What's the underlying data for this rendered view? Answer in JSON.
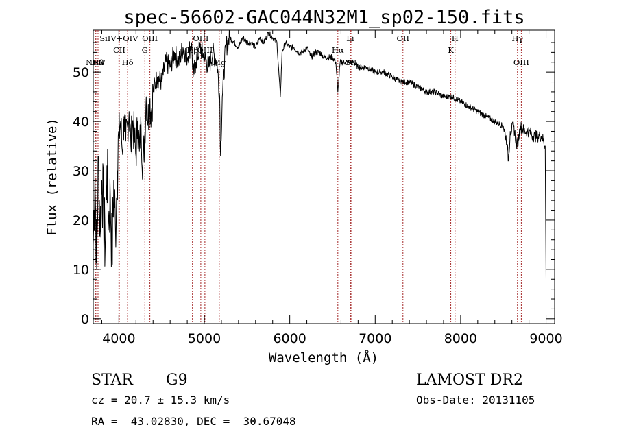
{
  "title": "spec-56602-GAC044N32M1_sp02-150.fits",
  "info": {
    "class": "STAR",
    "subclass": "G9",
    "cz": "cz = 20.7 ± 15.3 km/s",
    "radec": "RA =  43.02830, DEC =  30.67048",
    "survey": "LAMOST DR2",
    "obsdate": "Obs-Date: 20131105"
  },
  "colors": {
    "spectrum": "#000000",
    "line_marker": "#a52a2a"
  },
  "chart_data": {
    "type": "line",
    "title": "spec-56602-GAC044N32M1_sp02-150.fits",
    "xlabel": "Wavelength (Å)",
    "ylabel": "Flux (relative)",
    "xlim": [
      3700,
      9100
    ],
    "ylim": [
      -1,
      58.5
    ],
    "x_ticks": [
      4000,
      5000,
      6000,
      7000,
      8000,
      9000
    ],
    "y_ticks": [
      0,
      10,
      20,
      30,
      40,
      50
    ],
    "grid": false,
    "series": [
      {
        "points": [
          [
            3700,
            15
          ],
          [
            3720,
            30
          ],
          [
            3740,
            10
          ],
          [
            3760,
            33
          ],
          [
            3780,
            18
          ],
          [
            3800,
            28
          ],
          [
            3820,
            22
          ],
          [
            3840,
            14
          ],
          [
            3860,
            31
          ],
          [
            3880,
            20
          ],
          [
            3900,
            25
          ],
          [
            3920,
            12
          ],
          [
            3940,
            28
          ],
          [
            3960,
            18
          ],
          [
            3980,
            30
          ],
          [
            4000,
            37
          ],
          [
            4020,
            40
          ],
          [
            4040,
            34
          ],
          [
            4060,
            41
          ],
          [
            4080,
            36
          ],
          [
            4100,
            39
          ],
          [
            4120,
            42
          ],
          [
            4140,
            35
          ],
          [
            4160,
            40
          ],
          [
            4180,
            37
          ],
          [
            4200,
            33
          ],
          [
            4220,
            40
          ],
          [
            4240,
            34
          ],
          [
            4260,
            39
          ],
          [
            4280,
            31
          ],
          [
            4300,
            36
          ],
          [
            4320,
            45
          ],
          [
            4340,
            40
          ],
          [
            4360,
            44
          ],
          [
            4380,
            42
          ],
          [
            4400,
            46
          ],
          [
            4450,
            49
          ],
          [
            4500,
            48
          ],
          [
            4550,
            52
          ],
          [
            4600,
            51
          ],
          [
            4650,
            54
          ],
          [
            4700,
            52
          ],
          [
            4750,
            55
          ],
          [
            4800,
            53
          ],
          [
            4850,
            56
          ],
          [
            4870,
            49
          ],
          [
            4900,
            52
          ],
          [
            4950,
            55
          ],
          [
            5000,
            53
          ],
          [
            5050,
            51
          ],
          [
            5100,
            54
          ],
          [
            5150,
            52
          ],
          [
            5180,
            45
          ],
          [
            5190,
            33
          ],
          [
            5210,
            45
          ],
          [
            5250,
            55
          ],
          [
            5300,
            57
          ],
          [
            5350,
            56
          ],
          [
            5400,
            55
          ],
          [
            5450,
            57
          ],
          [
            5500,
            56
          ],
          [
            5550,
            56
          ],
          [
            5600,
            55
          ],
          [
            5650,
            57
          ],
          [
            5700,
            56
          ],
          [
            5750,
            58
          ],
          [
            5800,
            57
          ],
          [
            5850,
            56
          ],
          [
            5890,
            45
          ],
          [
            5910,
            54
          ],
          [
            5950,
            56
          ],
          [
            6000,
            55
          ],
          [
            6050,
            55
          ],
          [
            6100,
            54
          ],
          [
            6150,
            54
          ],
          [
            6200,
            55
          ],
          [
            6250,
            53
          ],
          [
            6300,
            54
          ],
          [
            6350,
            54
          ],
          [
            6400,
            53
          ],
          [
            6450,
            53
          ],
          [
            6500,
            53
          ],
          [
            6540,
            52
          ],
          [
            6563,
            46
          ],
          [
            6590,
            52
          ],
          [
            6650,
            52
          ],
          [
            6700,
            52
          ],
          [
            6750,
            52
          ],
          [
            6800,
            51
          ],
          [
            6900,
            51
          ],
          [
            7000,
            50
          ],
          [
            7100,
            50
          ],
          [
            7200,
            49
          ],
          [
            7300,
            48
          ],
          [
            7400,
            48
          ],
          [
            7500,
            47
          ],
          [
            7600,
            46
          ],
          [
            7700,
            46
          ],
          [
            7800,
            45
          ],
          [
            7900,
            45
          ],
          [
            8000,
            44
          ],
          [
            8100,
            43
          ],
          [
            8200,
            42
          ],
          [
            8300,
            41
          ],
          [
            8400,
            40
          ],
          [
            8500,
            39
          ],
          [
            8540,
            36
          ],
          [
            8560,
            32
          ],
          [
            8580,
            38
          ],
          [
            8620,
            39
          ],
          [
            8660,
            35
          ],
          [
            8700,
            39
          ],
          [
            8750,
            38
          ],
          [
            8800,
            38
          ],
          [
            8850,
            37
          ],
          [
            8900,
            37
          ],
          [
            8950,
            37
          ],
          [
            8990,
            35
          ],
          [
            9000,
            8
          ]
        ]
      }
    ],
    "spectral_lines": [
      {
        "label": "Ne V",
        "wavelength": 3727,
        "row": 2
      },
      {
        "label": "O II",
        "wavelength": 3741,
        "row": 2
      },
      {
        "label": "Hθ",
        "wavelength": 3756,
        "row": 2
      },
      {
        "label": "SiIV+OIV",
        "wavelength": 4000,
        "row": 0
      },
      {
        "label": "CII",
        "wavelength": 4005,
        "row": 1
      },
      {
        "label": "Hδ",
        "wavelength": 4102,
        "row": 2
      },
      {
        "label": "G",
        "wavelength": 4304,
        "row": 1
      },
      {
        "label": "OIII",
        "wavelength": 4363,
        "row": 0
      },
      {
        "label": "Hβ",
        "wavelength": 4861,
        "row": 1
      },
      {
        "label": "OIII",
        "wavelength": 4959,
        "row": 0
      },
      {
        "label": "OIII",
        "wavelength": 5007,
        "row": 1
      },
      {
        "label": "Mg",
        "wavelength": 5175,
        "row": 2
      },
      {
        "label": "Hα",
        "wavelength": 6563,
        "row": 1
      },
      {
        "label": "Li",
        "wavelength": 6708,
        "row": 0
      },
      {
        "label": "SII",
        "wavelength": 6717,
        "row": 2
      },
      {
        "label": "OII",
        "wavelength": 7325,
        "row": 0
      },
      {
        "label": "K",
        "wavelength": 7885,
        "row": 1
      },
      {
        "label": "H",
        "wavelength": 7935,
        "row": 0
      },
      {
        "label": "Hγ",
        "wavelength": 8665,
        "row": 0
      },
      {
        "label": "OIII",
        "wavelength": 8710,
        "row": 2
      }
    ]
  }
}
